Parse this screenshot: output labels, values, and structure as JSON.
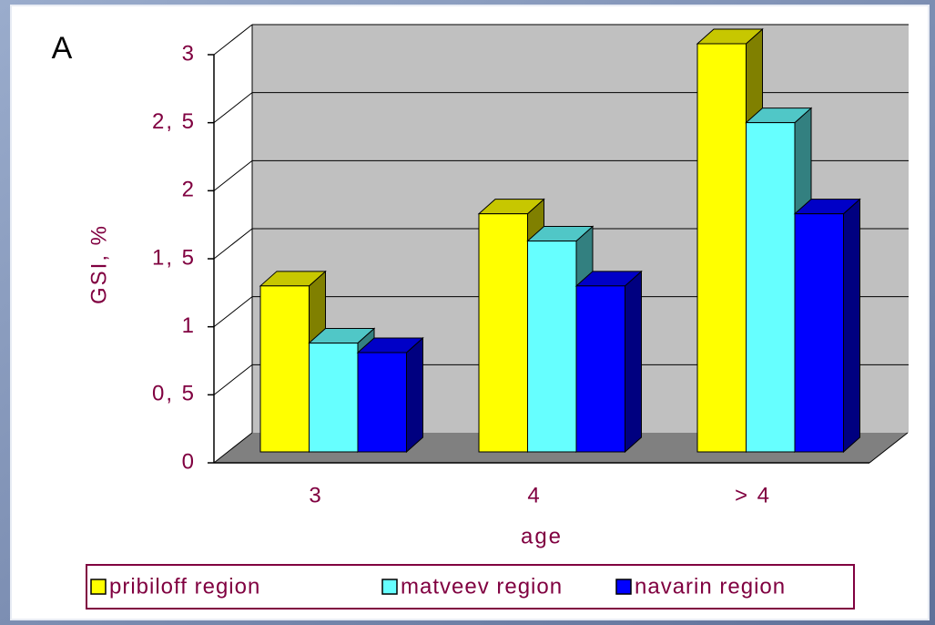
{
  "chart_data": {
    "type": "bar",
    "panel_label": "A",
    "xlabel": "age",
    "ylabel": "GSI, %",
    "categories": [
      "3",
      "4",
      "> 4"
    ],
    "series": [
      {
        "name": "pribiloff region",
        "color": "#ffff00",
        "values": [
          1.22,
          1.75,
          3.0
        ]
      },
      {
        "name": "matveev region",
        "color": "#66ffff",
        "values": [
          0.8,
          1.55,
          2.42
        ]
      },
      {
        "name": "navarin region",
        "color": "#0000ff",
        "values": [
          0.73,
          1.22,
          1.75
        ]
      }
    ],
    "ylim": [
      0,
      3
    ],
    "yticks": [
      0,
      {
        "value": 0.5,
        "label": "0, 5"
      },
      1,
      {
        "value": 1.5,
        "label": "1, 5"
      },
      2,
      {
        "value": 2.5,
        "label": "2, 5"
      },
      3
    ],
    "grid": true,
    "legend": "bottom"
  }
}
